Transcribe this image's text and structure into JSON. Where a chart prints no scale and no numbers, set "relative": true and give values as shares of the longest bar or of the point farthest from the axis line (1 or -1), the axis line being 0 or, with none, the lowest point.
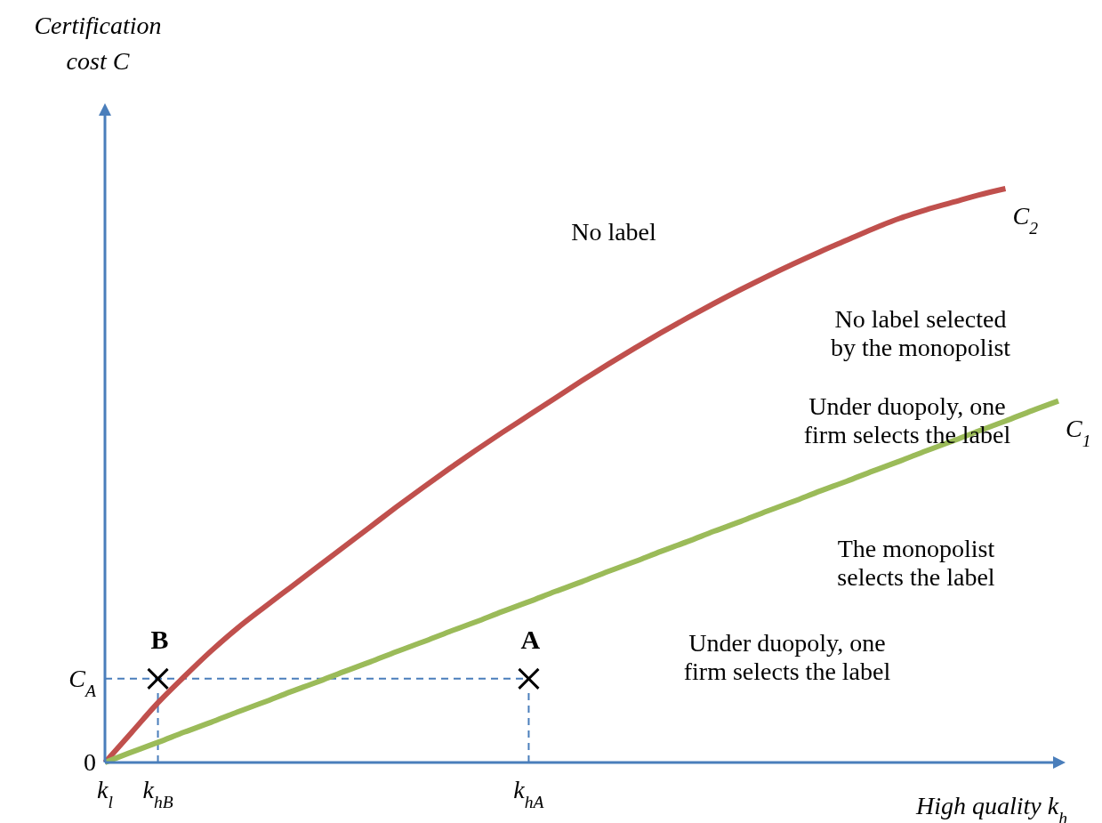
{
  "chart_data": {
    "type": "line",
    "relative": true,
    "ylabel": "Certification cost C",
    "xlabel": "High quality k$_{h}$",
    "categories": [
      "k$_{l}$",
      null,
      "k$_{hB}$",
      null,
      null,
      null,
      null,
      null,
      null,
      null,
      null,
      null,
      null,
      null,
      null,
      null,
      "k$_{hA}$",
      null,
      null,
      null,
      null,
      null,
      null,
      null,
      null,
      null,
      null,
      null,
      null,
      null,
      null,
      null,
      null,
      null,
      null,
      null,
      null
    ],
    "series": [
      {
        "name": "C$_{2}$",
        "color": "#c0504d",
        "values": [
          0,
          0.052,
          0.104,
          0.15,
          0.194,
          0.234,
          0.27,
          0.305,
          0.34,
          0.375,
          0.41,
          0.445,
          0.479,
          0.512,
          0.544,
          0.575,
          0.605,
          0.635,
          0.665,
          0.694,
          0.722,
          0.749,
          0.775,
          0.8,
          0.824,
          0.847,
          0.869,
          0.89,
          0.91,
          0.93,
          0.948,
          0.963,
          0.976,
          0.989,
          1,
          null,
          null
        ]
      },
      {
        "name": "C$_{1}$",
        "color": "#9bbb59",
        "values": [
          0,
          0.018,
          0.035,
          0.053,
          0.07,
          0.088,
          0.105,
          0.123,
          0.14,
          0.158,
          0.175,
          0.193,
          0.21,
          0.228,
          0.245,
          0.263,
          0.28,
          0.298,
          0.315,
          0.333,
          0.35,
          0.368,
          0.385,
          0.403,
          0.42,
          0.438,
          0.455,
          0.473,
          0.49,
          0.508,
          0.525,
          0.543,
          0.56,
          0.578,
          0.595,
          0.613,
          0.63
        ]
      },
      {
        "type": "scatter",
        "marker": "cross",
        "color": "#000000",
        "values": [
          null,
          null,
          0.146,
          null,
          null,
          null,
          null,
          null,
          null,
          null,
          null,
          null,
          null,
          null,
          null,
          null,
          0.146,
          null,
          null,
          null,
          null,
          null,
          null,
          null,
          null,
          null,
          null,
          null,
          null,
          null,
          null,
          null,
          null,
          null,
          null,
          null,
          null
        ]
      }
    ],
    "ref_lines": [
      {
        "axis": "y",
        "value": 0.146,
        "label": "C$_{A}$",
        "color": "#4a7ebb",
        "line_style": "dashed"
      },
      {
        "axis": "x",
        "value": "k$_{hB}$",
        "color": "#4a7ebb",
        "line_style": "dashed"
      },
      {
        "axis": "x",
        "value": "k$_{hA}$",
        "color": "#4a7ebb",
        "line_style": "dashed"
      }
    ],
    "annotations": [
      "No label",
      "No label selected by the monopolist",
      "Under duopoly, one firm selects the label",
      "The monopolist selects the label",
      "Under duopoly, one firm selects the label",
      {
        "text": "B",
        "x": "k$_{hB}$",
        "y": 0.146
      },
      {
        "text": "A",
        "x": "k$_{hA}$",
        "y": 0.146
      },
      {
        "text": "0",
        "x": "k$_{l}$",
        "y": 0
      }
    ]
  }
}
